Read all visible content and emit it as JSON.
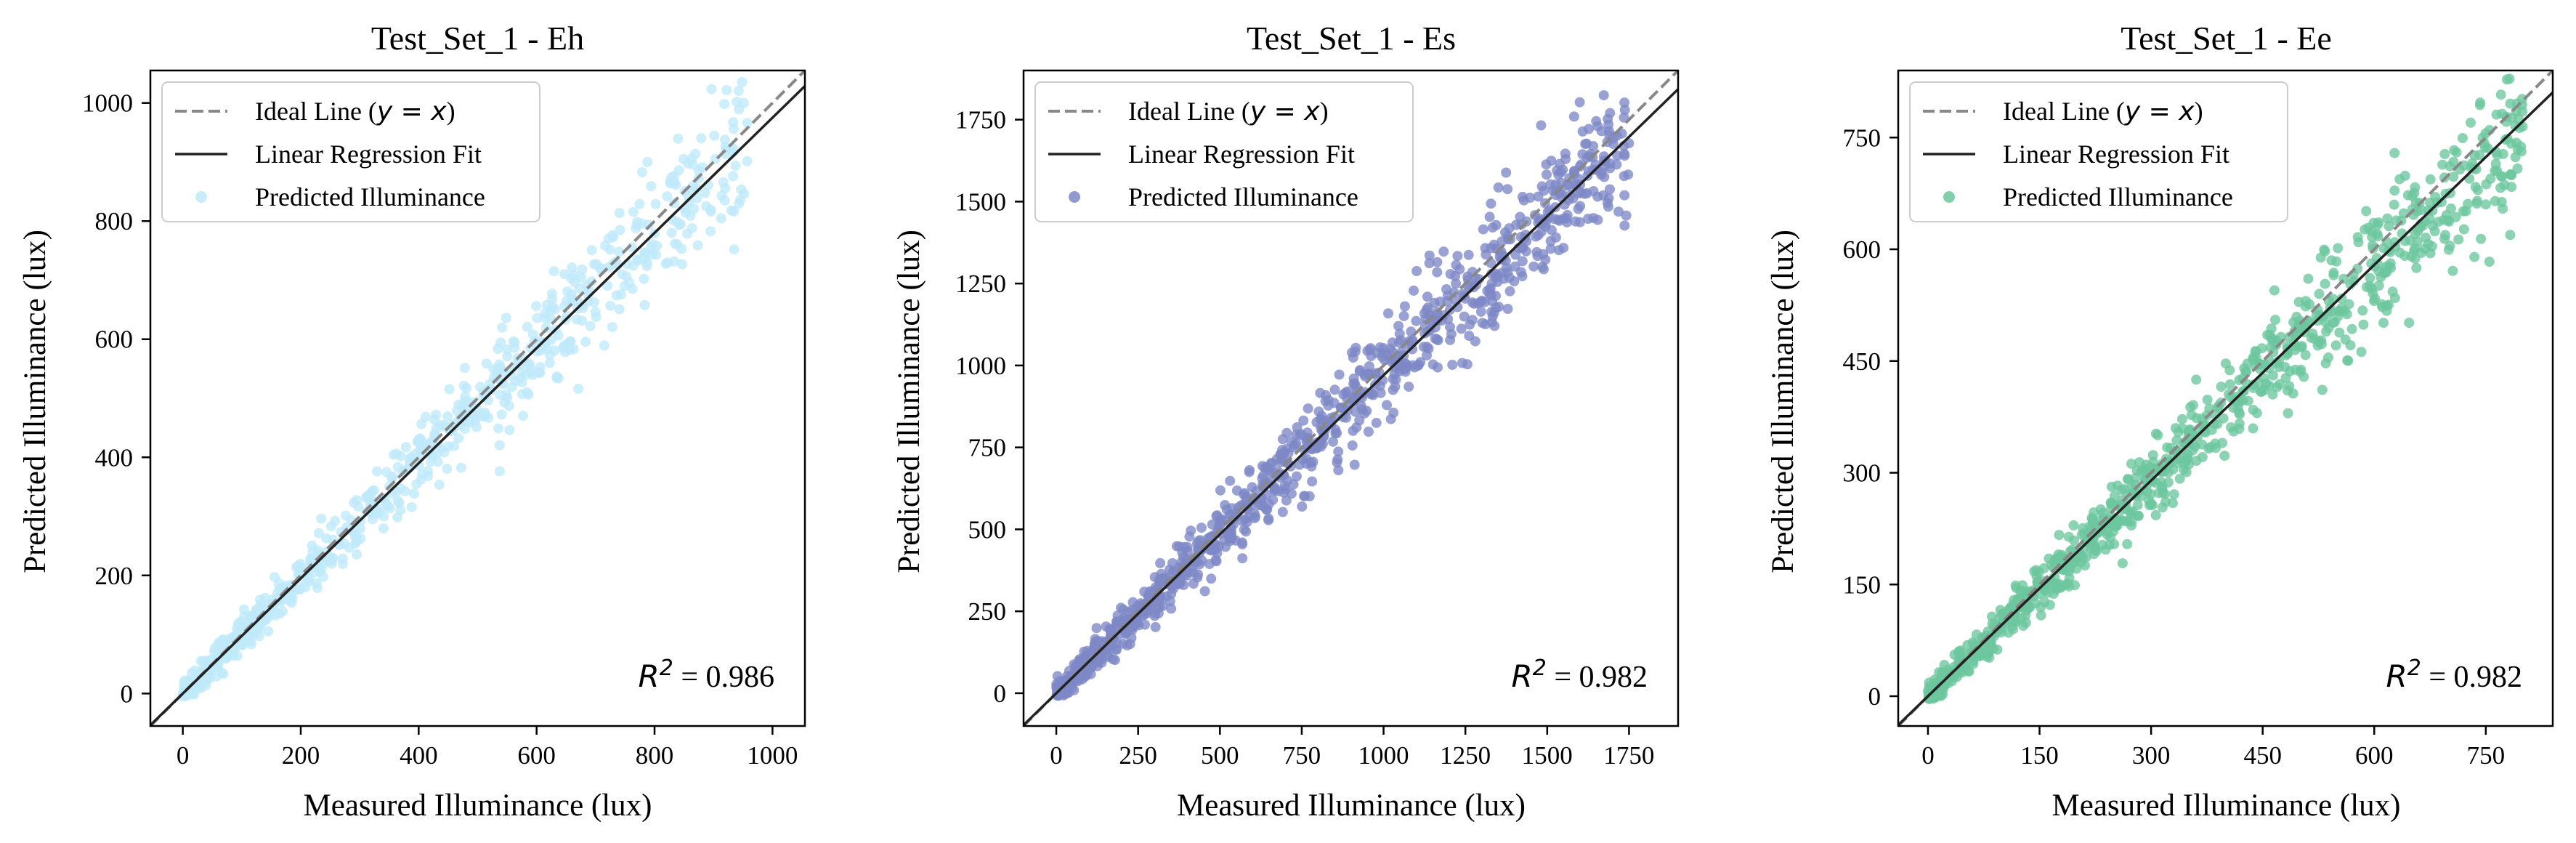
{
  "figure": {
    "legend": {
      "ideal_label_prefix": "Ideal Line (",
      "ideal_label_math": "y = x",
      "ideal_label_suffix": ")",
      "fit_label": "Linear Regression Fit",
      "scatter_label": "Predicted Illuminance"
    },
    "r2_prefix": "R",
    "r2_sup": "2"
  },
  "chart_data": [
    {
      "type": "scatter",
      "title": "Test_Set_1 - Eh",
      "xlabel": "Measured Illuminance (lux)",
      "ylabel": "Predicted Illuminance (lux)",
      "xlim": [
        -55,
        1055
      ],
      "ylim": [
        -55,
        1055
      ],
      "xticks": [
        0,
        200,
        400,
        600,
        800,
        1000
      ],
      "yticks": [
        0,
        200,
        400,
        600,
        800,
        1000
      ],
      "point_color": "#bfe9fa",
      "data_max": 960,
      "fit_slope": 0.975,
      "fit_intercept": 0,
      "r2_value": "= 0.986",
      "seed": 11,
      "n_points": 700,
      "scatter_note": "dense cloud along y=x from about 0 to 960 lux"
    },
    {
      "type": "scatter",
      "title": "Test_Set_1 - Es",
      "xlabel": "Measured Illuminance (lux)",
      "ylabel": "Predicted Illuminance (lux)",
      "xlim": [
        -100,
        1900
      ],
      "ylim": [
        -100,
        1900
      ],
      "xticks": [
        0,
        250,
        500,
        750,
        1000,
        1250,
        1500,
        1750
      ],
      "yticks": [
        0,
        250,
        500,
        750,
        1000,
        1250,
        1500,
        1750
      ],
      "point_color": "#7d88c6",
      "data_max": 1750,
      "fit_slope": 0.97,
      "fit_intercept": 0,
      "r2_value": "= 0.982",
      "seed": 23,
      "n_points": 1000,
      "scatter_note": "dense cloud along y=x from about 0 to 1750 lux"
    },
    {
      "type": "scatter",
      "title": "Test_Set_1 - Ee",
      "xlabel": "Measured Illuminance (lux)",
      "ylabel": "Predicted Illuminance (lux)",
      "xlim": [
        -40,
        840
      ],
      "ylim": [
        -40,
        840
      ],
      "xticks": [
        0,
        150,
        300,
        450,
        600,
        750
      ],
      "yticks": [
        0,
        150,
        300,
        450,
        600,
        750
      ],
      "point_color": "#6cc79d",
      "data_max": 800,
      "fit_slope": 0.965,
      "fit_intercept": 0,
      "r2_value": "= 0.982",
      "seed": 37,
      "n_points": 900,
      "scatter_note": "dense cloud along y=x from about 0 to 800 lux"
    }
  ]
}
